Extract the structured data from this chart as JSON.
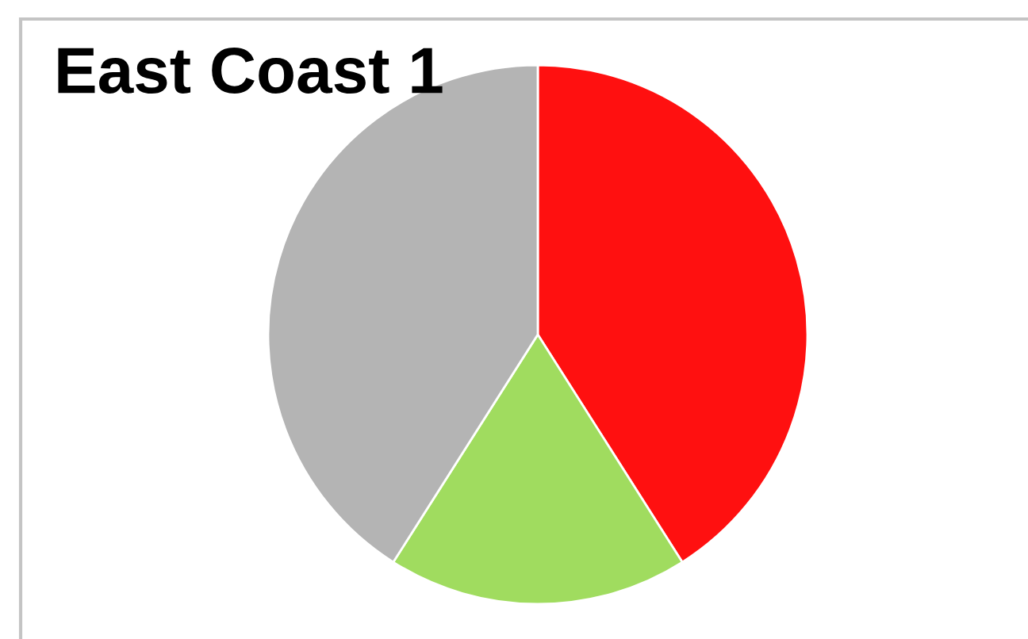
{
  "chart_data": {
    "type": "pie",
    "title": "East Coast 1",
    "categories": [
      null,
      null,
      null
    ],
    "values": [
      41,
      18,
      41
    ],
    "colors": [
      "#ff1010",
      "#a0dc5f",
      "#b4b4b4"
    ]
  }
}
